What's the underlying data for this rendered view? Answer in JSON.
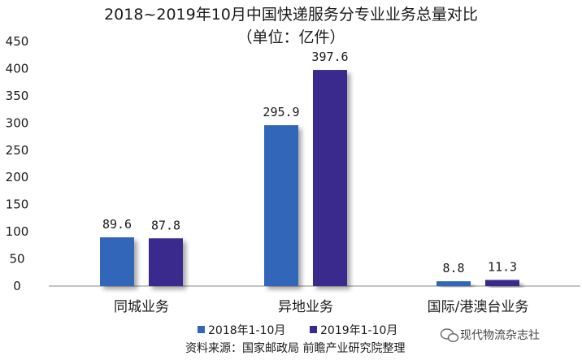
{
  "chart_data": {
    "type": "bar",
    "title": "2018~2019年10月中国快递服务分专业业务总量对比",
    "subtitle": "（单位：亿件）",
    "categories": [
      "同城业务",
      "异地业务",
      "国际/港澳台业务"
    ],
    "series": [
      {
        "name": "2018年1-10月",
        "values": [
          89.6,
          295.9,
          8.8
        ],
        "labels": [
          "89.6",
          "295.9",
          "8.8"
        ],
        "color": "#3366B8"
      },
      {
        "name": "2019年1-10月",
        "values": [
          87.8,
          397.6,
          11.3
        ],
        "labels": [
          "87.8",
          "397.6",
          "11.3"
        ],
        "color": "#3B2A8E"
      }
    ],
    "y_ticks": [
      "0",
      "50",
      "100",
      "150",
      "200",
      "250",
      "300",
      "350",
      "400",
      "450"
    ],
    "ylim": [
      0,
      450
    ],
    "grid": false,
    "legend_position": "bottom"
  },
  "source": "资料来源：国家邮政局 前瞻产业研究院整理",
  "watermark": "现代物流杂志社"
}
